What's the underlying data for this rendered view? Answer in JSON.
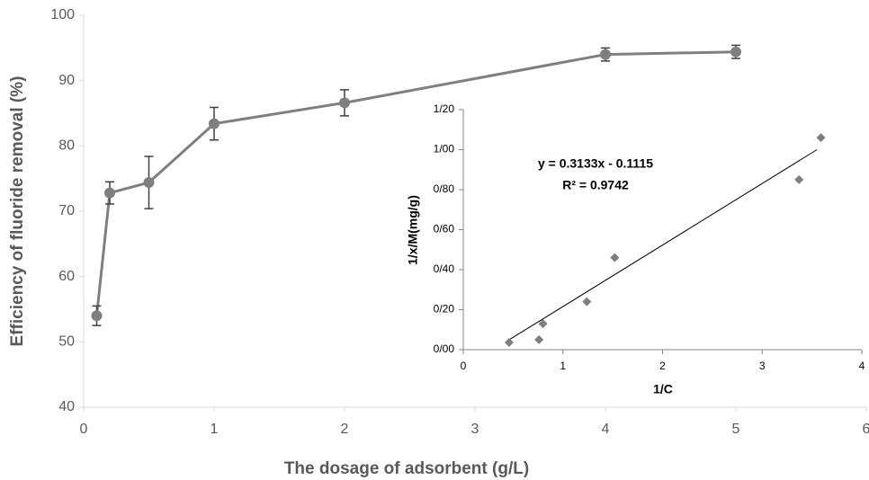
{
  "chart_data": [
    {
      "type": "line",
      "xlabel": "The dosage of adsorbent (g/L)",
      "ylabel": "Efficiency of  fluoride removal (%)",
      "xlim": [
        0,
        6
      ],
      "xticks": [
        0,
        1,
        2,
        3,
        4,
        5,
        6
      ],
      "ylim": [
        40,
        100
      ],
      "yticks": [
        40,
        50,
        60,
        70,
        80,
        90,
        100
      ],
      "x": [
        0.1,
        0.2,
        0.5,
        1,
        2,
        4,
        5
      ],
      "series": [
        {
          "color": "#7f7f7f",
          "values": [
            54,
            72.8,
            74.4,
            83.4,
            86.6,
            94,
            94.4
          ],
          "errors": [
            1.5,
            1.7,
            4,
            2.5,
            2,
            1,
            1
          ]
        }
      ]
    },
    {
      "type": "scatter",
      "xlabel": "1/C",
      "ylabel": "1/x/M(mg/g)",
      "annotations": [
        "y = 0.3133x - 0.1115",
        "R² = 0.9742"
      ],
      "xlim": [
        0,
        4
      ],
      "xticks": [
        0,
        1,
        2,
        3,
        4
      ],
      "ylim": [
        0,
        1.2
      ],
      "yticks": [
        {
          "value": 0,
          "label": "0/00"
        },
        {
          "value": 0.2,
          "label": "0/20"
        },
        {
          "value": 0.4,
          "label": "0/40"
        },
        {
          "value": 0.6,
          "label": "0/60"
        },
        {
          "value": 0.8,
          "label": "0/80"
        },
        {
          "value": 1.0,
          "label": "1/00"
        },
        {
          "value": 1.2,
          "label": "1/20"
        }
      ],
      "x": [
        0.46,
        0.76,
        0.8,
        1.24,
        1.52,
        3.37,
        3.59
      ],
      "series": [
        {
          "color": "#7f7f7f",
          "values": [
            0.036,
            0.05,
            0.13,
            0.24,
            0.46,
            0.85,
            1.06
          ]
        }
      ],
      "trendline": {
        "color": "#000000",
        "x": [
          0.43,
          3.55
        ],
        "y": [
          0.04,
          1.0
        ]
      }
    }
  ]
}
